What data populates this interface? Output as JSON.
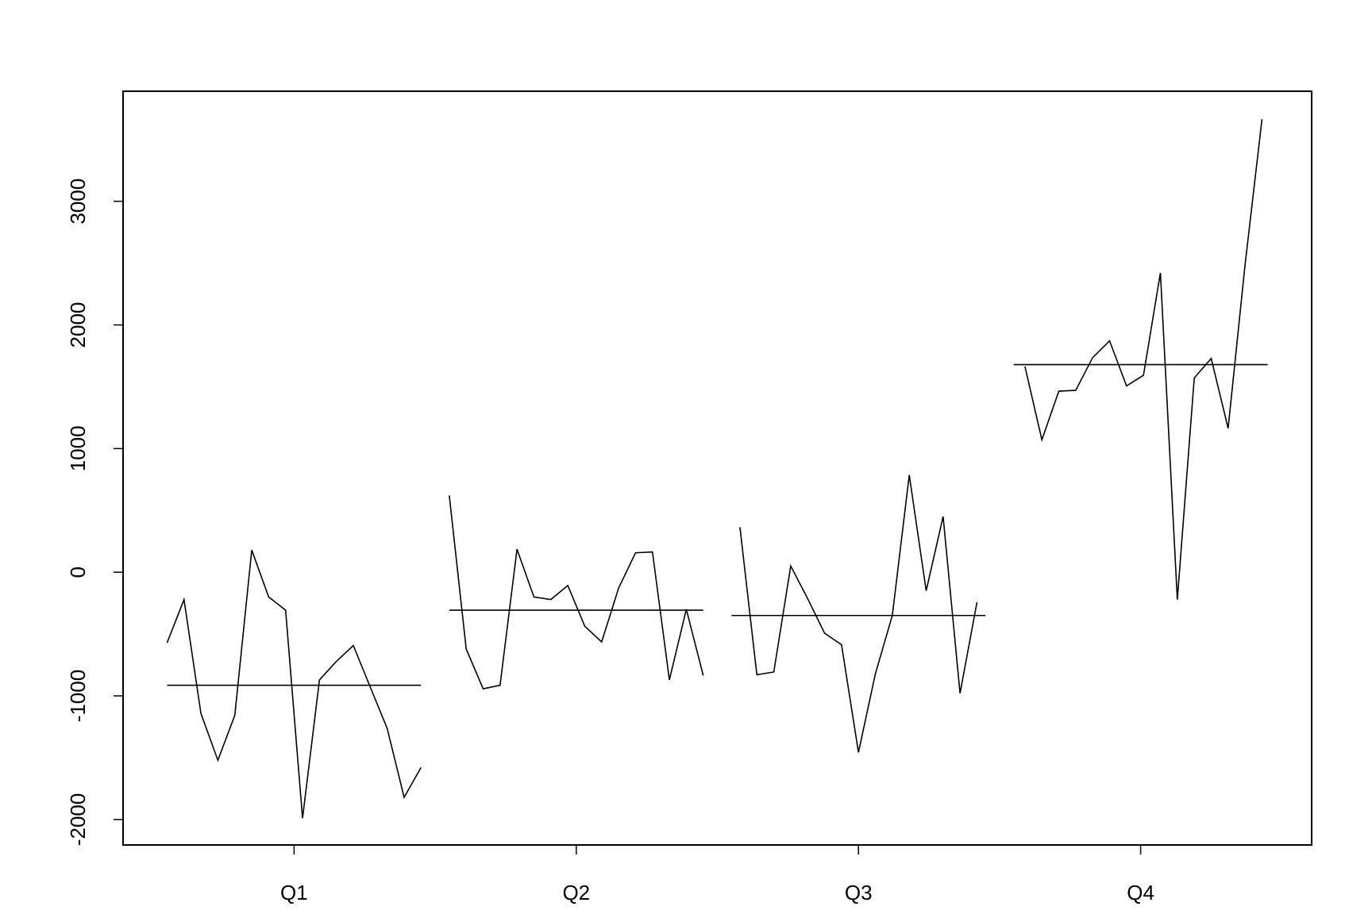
{
  "chart_data": {
    "type": "line",
    "categories": [
      "Q1",
      "Q2",
      "Q3",
      "Q4"
    ],
    "xticks": [
      1,
      2,
      3,
      4
    ],
    "xlim": [
      0.394,
      4.606
    ],
    "ylim": [
      -2206,
      3890
    ],
    "yticks": [
      -2000,
      -1000,
      0,
      1000,
      2000,
      3000
    ],
    "color": "#000000",
    "series": [
      {
        "x": [
          0.55,
          0.61,
          0.67,
          0.73,
          0.79,
          0.85,
          0.91,
          0.97,
          1.03,
          1.09,
          1.15,
          1.21,
          1.27,
          1.33,
          1.39,
          1.45
        ],
        "values": [
          -571,
          -221,
          -1143,
          -1521,
          -1157,
          179,
          -200,
          -307,
          -1990,
          -871,
          -721,
          -593,
          -929,
          -1264,
          -1821,
          -1579
        ]
      },
      {
        "x": [
          1.55,
          1.61,
          1.67,
          1.73,
          1.79,
          1.85,
          1.91,
          1.97,
          2.03,
          2.09,
          2.15,
          2.21,
          2.27,
          2.33,
          2.39,
          2.45
        ],
        "values": [
          621,
          -621,
          -943,
          -914,
          186,
          -200,
          -221,
          -107,
          -436,
          -564,
          -129,
          157,
          164,
          -871,
          -300,
          -836
        ]
      },
      {
        "x": [
          2.58,
          2.64,
          2.7,
          2.76,
          2.82,
          2.88,
          2.94,
          3.0,
          3.06,
          3.12,
          3.18,
          3.24,
          3.3,
          3.36,
          3.42
        ],
        "values": [
          364,
          -829,
          -807,
          50,
          -214,
          -493,
          -586,
          -1457,
          -821,
          -350,
          786,
          -150,
          450,
          -979,
          -243
        ]
      },
      {
        "x": [
          3.59,
          3.65,
          3.71,
          3.77,
          3.83,
          3.89,
          3.95,
          4.01,
          4.07,
          4.13,
          4.19,
          4.25,
          4.31,
          4.37,
          4.43
        ],
        "values": [
          1664,
          1071,
          1464,
          1471,
          1736,
          1871,
          1507,
          1593,
          2421,
          -221,
          1571,
          1729,
          1164,
          2486,
          3664
        ]
      }
    ],
    "means": [
      -914,
      -307,
      -350,
      1679
    ]
  }
}
